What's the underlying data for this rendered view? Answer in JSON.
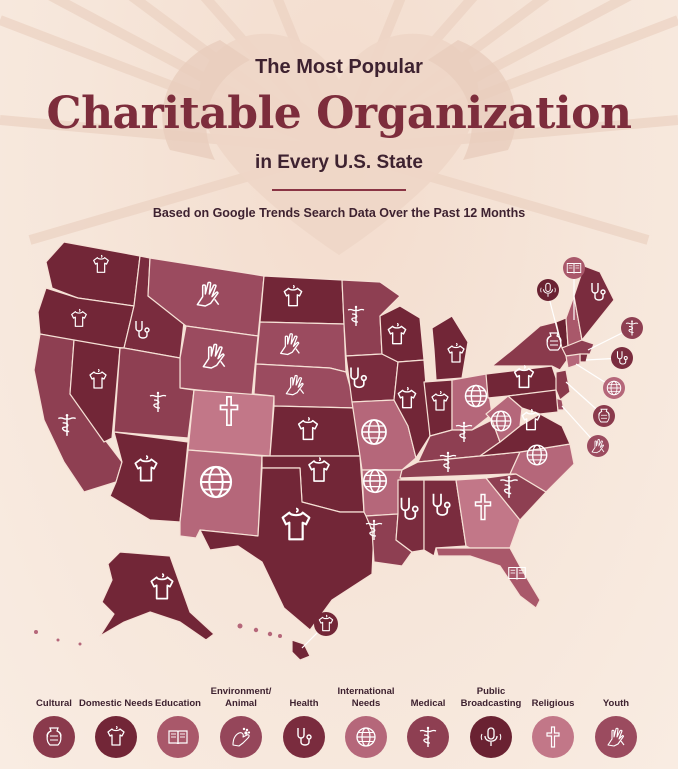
{
  "header": {
    "line1": "The Most Popular",
    "line2": "Charitable Organization",
    "line3": "in Every U.S. State",
    "subtitle": "Based on Google Trends Search Data Over the Past 12 Months"
  },
  "colors": {
    "Cultural": "#8a3a4c",
    "Domestic Needs": "#722637",
    "Education": "#a9586a",
    "Environment/Animal": "#95465a",
    "Health": "#7a2c3e",
    "International Needs": "#b5677a",
    "Medical": "#8e3f52",
    "Public Broadcasting": "#6a2232",
    "Religious": "#c27788",
    "Youth": "#9b4b5f"
  },
  "legend": [
    {
      "category": "Cultural",
      "label": "Cultural",
      "icon": "vase-icon"
    },
    {
      "category": "Domestic Needs",
      "label": "Domestic Needs",
      "icon": "shirt-icon"
    },
    {
      "category": "Education",
      "label": "Education",
      "icon": "book-icon"
    },
    {
      "category": "Environment/Animal",
      "label": "Environment/ Animal",
      "icon": "paw-hand-icon"
    },
    {
      "category": "Health",
      "label": "Health",
      "icon": "stethoscope-icon"
    },
    {
      "category": "International Needs",
      "label": "International Needs",
      "icon": "globe-icon"
    },
    {
      "category": "Medical",
      "label": "Medical",
      "icon": "caduceus-icon"
    },
    {
      "category": "Public Broadcasting",
      "label": "Public Broadcasting",
      "icon": "microphone-icon"
    },
    {
      "category": "Religious",
      "label": "Religious",
      "icon": "cross-icon"
    },
    {
      "category": "Youth",
      "label": "Youth",
      "icon": "hands-icon"
    }
  ],
  "states": [
    {
      "state": "Washington",
      "category": "Domestic Needs"
    },
    {
      "state": "Oregon",
      "category": "Domestic Needs"
    },
    {
      "state": "California",
      "category": "Medical"
    },
    {
      "state": "Nevada",
      "category": "Domestic Needs"
    },
    {
      "state": "Idaho",
      "category": "Health"
    },
    {
      "state": "Montana",
      "category": "Youth"
    },
    {
      "state": "Wyoming",
      "category": "Youth"
    },
    {
      "state": "Utah",
      "category": "Medical"
    },
    {
      "state": "Colorado",
      "category": "Religious"
    },
    {
      "state": "Arizona",
      "category": "Domestic Needs"
    },
    {
      "state": "New Mexico",
      "category": "International Needs"
    },
    {
      "state": "North Dakota",
      "category": "Domestic Needs"
    },
    {
      "state": "South Dakota",
      "category": "Youth"
    },
    {
      "state": "Nebraska",
      "category": "Youth"
    },
    {
      "state": "Kansas",
      "category": "Domestic Needs"
    },
    {
      "state": "Oklahoma",
      "category": "Domestic Needs"
    },
    {
      "state": "Texas",
      "category": "Domestic Needs"
    },
    {
      "state": "Minnesota",
      "category": "Medical"
    },
    {
      "state": "Iowa",
      "category": "Health"
    },
    {
      "state": "Missouri",
      "category": "International Needs"
    },
    {
      "state": "Arkansas",
      "category": "International Needs"
    },
    {
      "state": "Louisiana",
      "category": "Medical"
    },
    {
      "state": "Wisconsin",
      "category": "Domestic Needs"
    },
    {
      "state": "Illinois",
      "category": "Domestic Needs"
    },
    {
      "state": "Michigan",
      "category": "Domestic Needs"
    },
    {
      "state": "Indiana",
      "category": "Domestic Needs"
    },
    {
      "state": "Ohio",
      "category": "International Needs"
    },
    {
      "state": "Kentucky",
      "category": "Medical"
    },
    {
      "state": "Tennessee",
      "category": "Medical"
    },
    {
      "state": "Mississippi",
      "category": "Health"
    },
    {
      "state": "Alabama",
      "category": "Health"
    },
    {
      "state": "Georgia",
      "category": "Religious"
    },
    {
      "state": "Florida",
      "category": "Education"
    },
    {
      "state": "South Carolina",
      "category": "Medical"
    },
    {
      "state": "North Carolina",
      "category": "International Needs"
    },
    {
      "state": "Virginia",
      "category": "Domestic Needs"
    },
    {
      "state": "West Virginia",
      "category": "International Needs"
    },
    {
      "state": "Pennsylvania",
      "category": "Domestic Needs"
    },
    {
      "state": "New York",
      "category": "Cultural"
    },
    {
      "state": "Vermont",
      "category": "Public Broadcasting"
    },
    {
      "state": "New Hampshire",
      "category": "Education"
    },
    {
      "state": "Maine",
      "category": "Health"
    },
    {
      "state": "Massachusetts",
      "category": "Medical"
    },
    {
      "state": "Rhode Island",
      "category": "Health"
    },
    {
      "state": "Connecticut",
      "category": "International Needs"
    },
    {
      "state": "New Jersey",
      "category": "Cultural"
    },
    {
      "state": "Delaware",
      "category": "Youth"
    },
    {
      "state": "Maryland",
      "category": "Domestic Needs"
    },
    {
      "state": "Alaska",
      "category": "Domestic Needs"
    },
    {
      "state": "Hawaii",
      "category": "Domestic Needs"
    }
  ]
}
